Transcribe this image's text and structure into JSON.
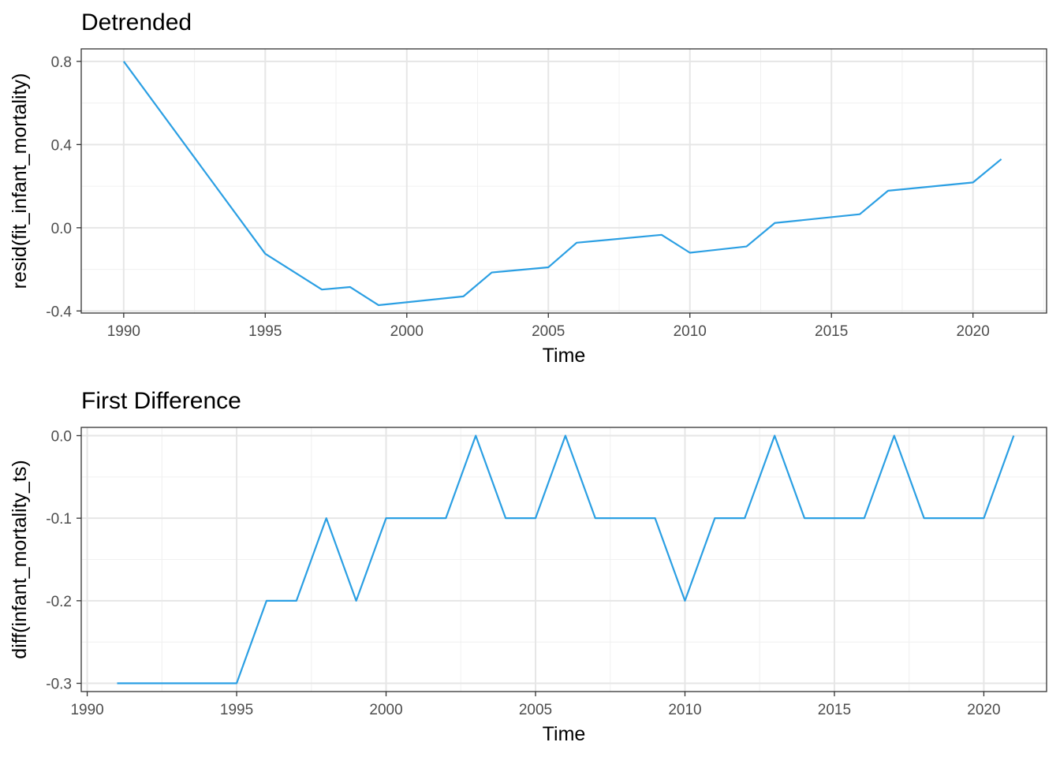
{
  "chart_data": [
    {
      "type": "line",
      "title": "Detrended",
      "xlabel": "Time",
      "ylabel": "resid(fit_infant_mortality)",
      "xlim": [
        1988.5,
        1992.6
      ],
      "ylim": [
        -0.41,
        0.86
      ],
      "x_ticks": [
        1990,
        1995,
        2000,
        2005,
        2010,
        2015,
        2020
      ],
      "x_tick_labels": [
        "1990",
        "1995",
        "2000",
        "2005",
        "2010",
        "2015",
        "2020"
      ],
      "y_ticks": [
        -0.4,
        0.0,
        0.4,
        0.8
      ],
      "y_tick_labels": [
        "-0.4",
        "0.0",
        "0.4",
        "0.8"
      ],
      "grid": true,
      "series": [
        {
          "name": "resid",
          "color": "#2b9fe3",
          "x": [
            1990,
            1995,
            1997,
            1998,
            1999,
            2002,
            2003,
            2005,
            2006,
            2009,
            2010,
            2012,
            2013,
            2016,
            2017,
            2020,
            2021
          ],
          "values": [
            0.8,
            -0.125,
            -0.297,
            -0.285,
            -0.372,
            -0.33,
            -0.215,
            -0.19,
            -0.072,
            -0.034,
            -0.12,
            -0.09,
            0.023,
            0.065,
            0.178,
            0.218,
            0.33
          ]
        }
      ]
    },
    {
      "type": "line",
      "title": "First Difference",
      "xlabel": "Time",
      "ylabel": "diff(infant_mortality_ts)",
      "xlim": [
        1989.8,
        1992.1
      ],
      "ylim": [
        -0.31,
        0.01
      ],
      "x_ticks": [
        1990,
        1995,
        2000,
        2005,
        2010,
        2015,
        2020
      ],
      "x_tick_labels": [
        "1990",
        "1995",
        "2000",
        "2005",
        "2010",
        "2015",
        "2020"
      ],
      "y_ticks": [
        -0.3,
        -0.2,
        -0.1,
        0.0
      ],
      "y_tick_labels": [
        "-0.3",
        "-0.2",
        "-0.1",
        "0.0"
      ],
      "grid": true,
      "series": [
        {
          "name": "diff",
          "color": "#2b9fe3",
          "x": [
            1991,
            1992,
            1993,
            1994,
            1995,
            1996,
            1997,
            1998,
            1999,
            2000,
            2001,
            2002,
            2003,
            2004,
            2005,
            2006,
            2007,
            2008,
            2009,
            2010,
            2011,
            2012,
            2013,
            2014,
            2015,
            2016,
            2017,
            2018,
            2019,
            2020,
            2021
          ],
          "values": [
            -0.3,
            -0.3,
            -0.3,
            -0.3,
            -0.3,
            -0.2,
            -0.2,
            -0.1,
            -0.2,
            -0.1,
            -0.1,
            -0.1,
            0.0,
            -0.1,
            -0.1,
            0.0,
            -0.1,
            -0.1,
            -0.1,
            -0.2,
            -0.1,
            -0.1,
            0.0,
            -0.1,
            -0.1,
            -0.1,
            0.0,
            -0.1,
            -0.1,
            -0.1,
            0.0
          ]
        }
      ]
    }
  ]
}
